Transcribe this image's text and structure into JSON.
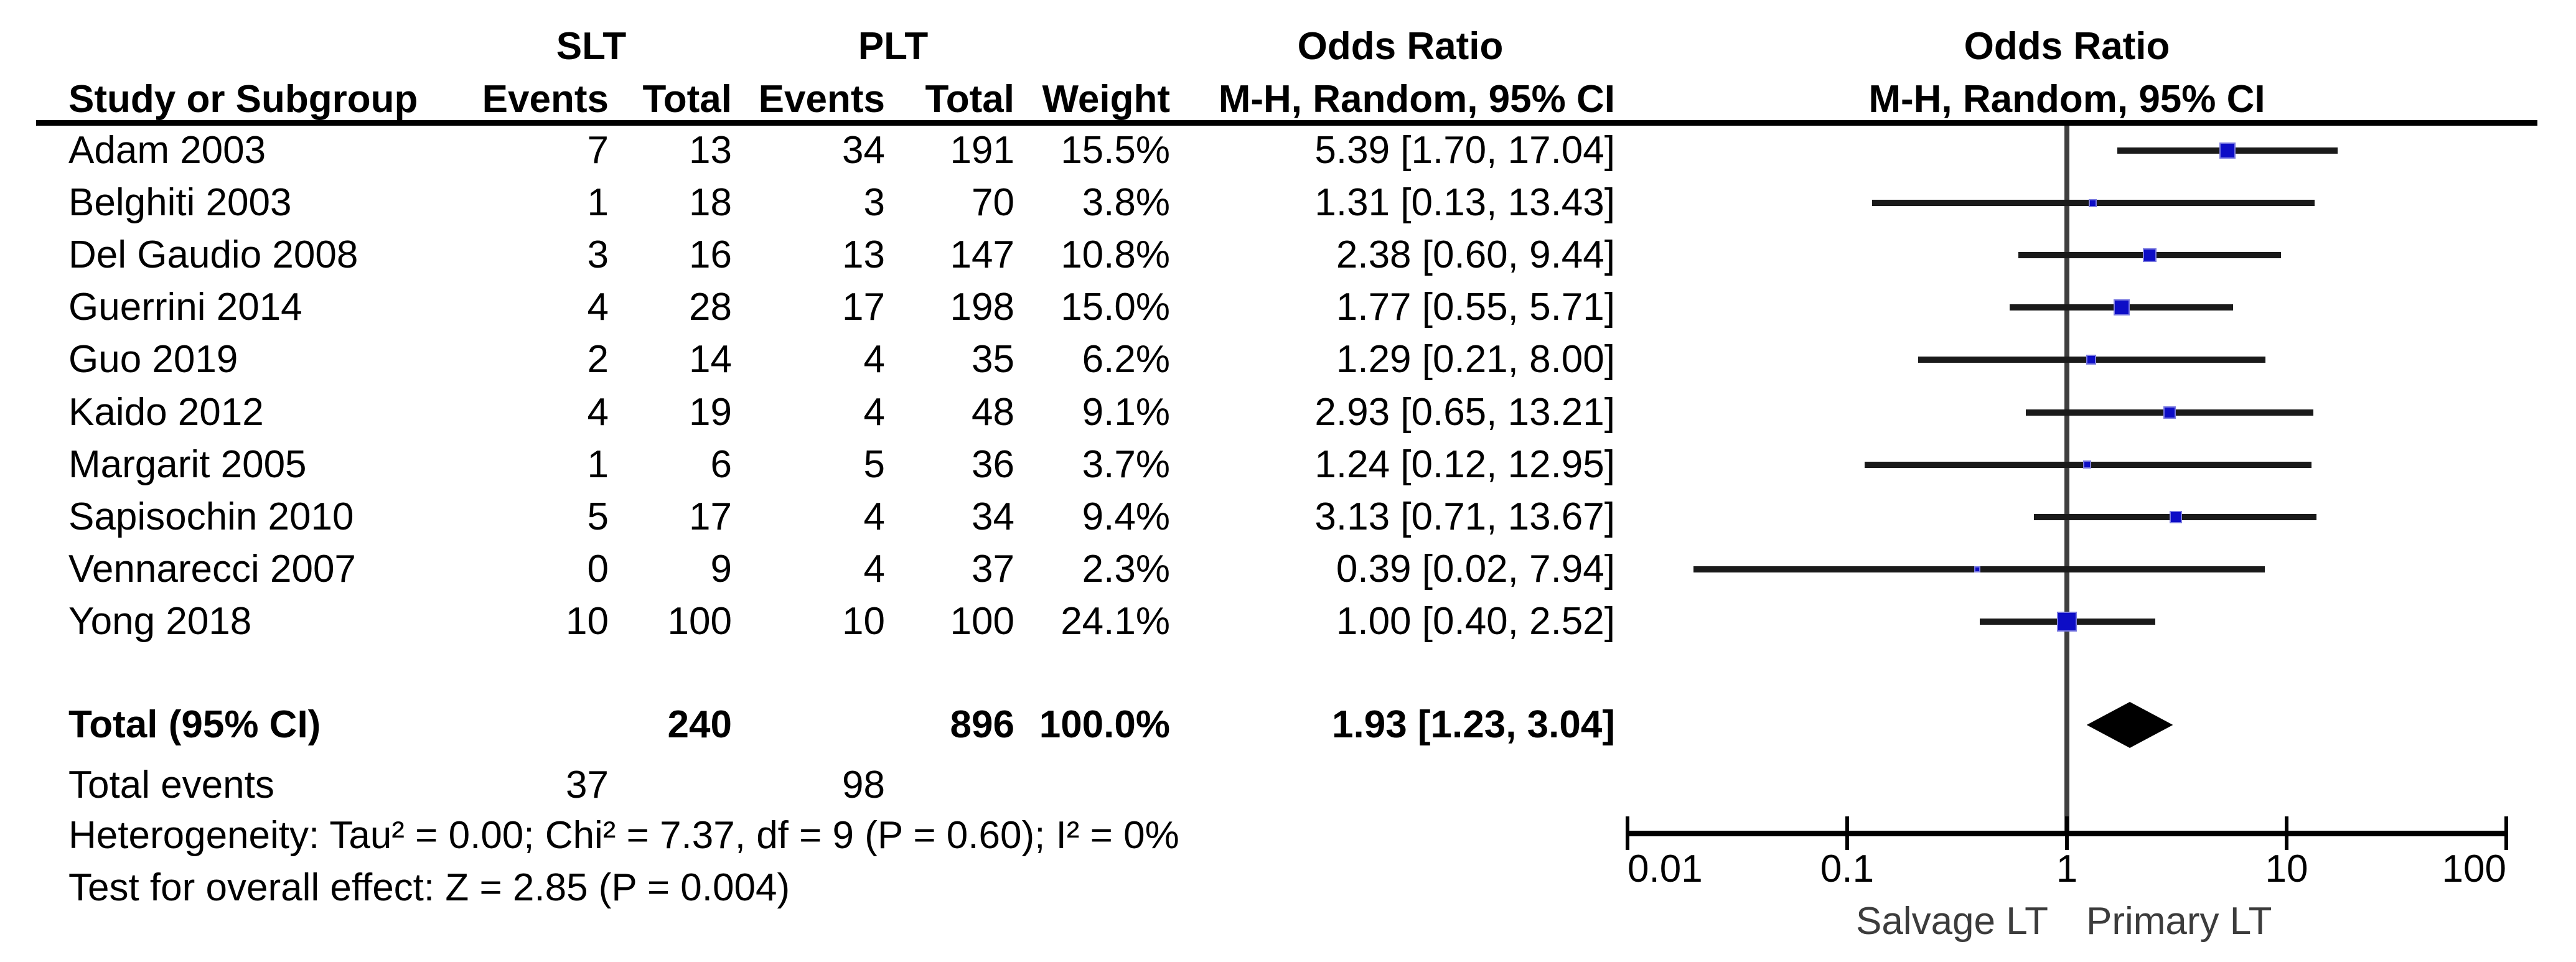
{
  "table": {
    "headers": {
      "group1": "SLT",
      "group2": "PLT",
      "study": "Study or Subgroup",
      "events1": "Events",
      "total1": "Total",
      "events2": "Events",
      "total2": "Total",
      "weight": "Weight",
      "or_col_line1": "Odds Ratio",
      "or_col_line2": "M-H, Random, 95% CI",
      "plot_line1": "Odds Ratio",
      "plot_line2": "M-H, Random, 95% CI"
    },
    "total_events_label": "Total events",
    "footer": {
      "heterogeneity": "Heterogeneity: Tau² = 0.00; Chi² = 7.37, df = 9 (P = 0.60); I² = 0%",
      "overall_effect": "Test for overall effect: Z = 2.85 (P = 0.004)"
    }
  },
  "chart_data": {
    "type": "scatter",
    "subtype": "forest-plot",
    "title": "Odds Ratio",
    "effect_measure": "M-H, Random, 95% CI",
    "x_scale": "log10",
    "xlim": [
      0.01,
      100
    ],
    "x_ticks": [
      0.01,
      0.1,
      1,
      10,
      100
    ],
    "x_tick_labels": [
      "0.01",
      "0.1",
      "1",
      "10",
      "100"
    ],
    "null_line": 1,
    "favours_left": "Salvage LT",
    "favours_right": "Primary LT",
    "marker_color": "#0d0dc6",
    "marker_border_color": "#7a7ae0",
    "ci_color": "#1a1a1a",
    "diamond_color": "#000000",
    "axis_color": "#000000",
    "null_line_color": "#3f3f3f",
    "studies": [
      {
        "name": "Adam 2003",
        "slt_events": 7,
        "slt_total": 13,
        "plt_events": 34,
        "plt_total": 191,
        "weight_pct": 15.5,
        "or": 5.39,
        "ci_low": 1.7,
        "ci_high": 17.04
      },
      {
        "name": "Belghiti 2003",
        "slt_events": 1,
        "slt_total": 18,
        "plt_events": 3,
        "plt_total": 70,
        "weight_pct": 3.8,
        "or": 1.31,
        "ci_low": 0.13,
        "ci_high": 13.43
      },
      {
        "name": "Del Gaudio 2008",
        "slt_events": 3,
        "slt_total": 16,
        "plt_events": 13,
        "plt_total": 147,
        "weight_pct": 10.8,
        "or": 2.38,
        "ci_low": 0.6,
        "ci_high": 9.44
      },
      {
        "name": "Guerrini 2014",
        "slt_events": 4,
        "slt_total": 28,
        "plt_events": 17,
        "plt_total": 198,
        "weight_pct": 15.0,
        "or": 1.77,
        "ci_low": 0.55,
        "ci_high": 5.71
      },
      {
        "name": "Guo 2019",
        "slt_events": 2,
        "slt_total": 14,
        "plt_events": 4,
        "plt_total": 35,
        "weight_pct": 6.2,
        "or": 1.29,
        "ci_low": 0.21,
        "ci_high": 8.0
      },
      {
        "name": "Kaido 2012",
        "slt_events": 4,
        "slt_total": 19,
        "plt_events": 4,
        "plt_total": 48,
        "weight_pct": 9.1,
        "or": 2.93,
        "ci_low": 0.65,
        "ci_high": 13.21
      },
      {
        "name": "Margarit 2005",
        "slt_events": 1,
        "slt_total": 6,
        "plt_events": 5,
        "plt_total": 36,
        "weight_pct": 3.7,
        "or": 1.24,
        "ci_low": 0.12,
        "ci_high": 12.95
      },
      {
        "name": "Sapisochin 2010",
        "slt_events": 5,
        "slt_total": 17,
        "plt_events": 4,
        "plt_total": 34,
        "weight_pct": 9.4,
        "or": 3.13,
        "ci_low": 0.71,
        "ci_high": 13.67
      },
      {
        "name": "Vennarecci 2007",
        "slt_events": 0,
        "slt_total": 9,
        "plt_events": 4,
        "plt_total": 37,
        "weight_pct": 2.3,
        "or": 0.39,
        "ci_low": 0.02,
        "ci_high": 7.94
      },
      {
        "name": "Yong 2018",
        "slt_events": 10,
        "slt_total": 100,
        "plt_events": 10,
        "plt_total": 100,
        "weight_pct": 24.1,
        "or": 1.0,
        "ci_low": 0.4,
        "ci_high": 2.52
      }
    ],
    "total": {
      "label": "Total (95% CI)",
      "slt_total": 240,
      "plt_total": 896,
      "weight_pct": 100.0,
      "or": 1.93,
      "ci_low": 1.23,
      "ci_high": 3.04
    },
    "total_events": {
      "slt": 37,
      "plt": 98
    }
  }
}
